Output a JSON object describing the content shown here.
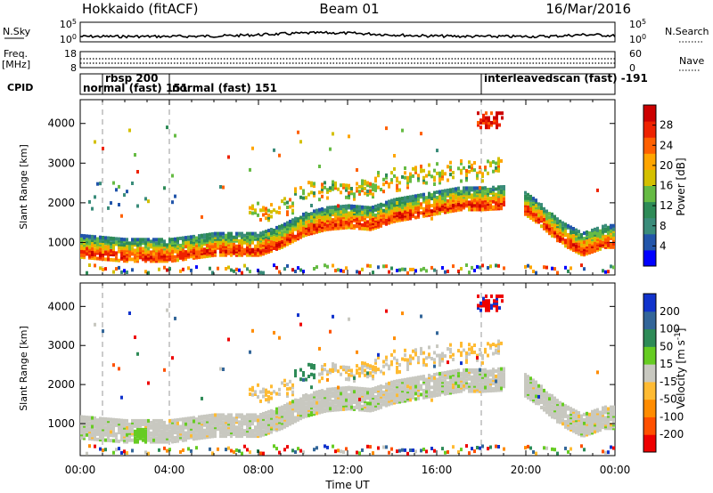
{
  "header": {
    "station": "Hokkaido (fitACF)",
    "beam": "Beam 01",
    "date": "16/Mar/2016"
  },
  "noise_panel": {
    "left_label": "N.Sky",
    "left_top_tick": "10^5",
    "left_bottom_tick": "10^0",
    "right_top_tick": "10^5",
    "right_bottom_tick": "10^0",
    "right_label": "N.Search"
  },
  "freq_panel": {
    "left_label_line1": "Freq.",
    "left_label_line2": "[MHz]",
    "left_top_tick": "18",
    "left_bottom_tick": "8",
    "right_top_tick": "60",
    "right_bottom_tick": "0",
    "right_label": "Nave"
  },
  "cpid_panel": {
    "label": "CPID",
    "modes": [
      {
        "text": "rbsp 200",
        "hour": 1.0
      },
      {
        "text": "normal (fast) 151",
        "hour": 0.0
      },
      {
        "text": "normal (fast) 151",
        "hour": 4.0
      },
      {
        "text": "interleavedscan (fast) -191",
        "hour": 18.0
      }
    ],
    "mode_boundaries_hours": [
      1.0,
      4.0,
      18.0
    ]
  },
  "colors": {
    "power": [
      "#0000ff",
      "#2255aa",
      "#3a8c7a",
      "#2e8b57",
      "#66bb44",
      "#d4c000",
      "#ffa500",
      "#ff6000",
      "#ee2200",
      "#cc0000"
    ],
    "velocity": [
      "#ee0000",
      "#ff5000",
      "#ff8c00",
      "#ffbb33",
      "#c8c8c0",
      "#66cc22",
      "#2e8b57",
      "#336699",
      "#1133cc"
    ]
  },
  "chart_data": [
    {
      "type": "heatmap",
      "name": "Power",
      "ylabel": "Slant Range [km]",
      "xlabel": "Time UT",
      "xlim": [
        0,
        24
      ],
      "ylim": [
        180,
        4600
      ],
      "x_ticks": [
        "00:00",
        "04:00",
        "08:00",
        "12:00",
        "16:00",
        "20:00",
        "00:00"
      ],
      "y_ticks": [
        1000,
        2000,
        3000,
        4000
      ],
      "colorbar": {
        "label": "Power [dB]",
        "range": [
          0,
          32
        ],
        "ticks": [
          4,
          8,
          12,
          16,
          20,
          24,
          28
        ]
      },
      "main_echo_band_km": {
        "hours": [
          0,
          2,
          4,
          6,
          8,
          9,
          10,
          11,
          12,
          13,
          14,
          15,
          16,
          17,
          18,
          19.5,
          20.5,
          21.5,
          22.5,
          23.5
        ],
        "range": [
          950,
          850,
          850,
          1000,
          1000,
          1200,
          1500,
          1650,
          1700,
          1650,
          1850,
          1950,
          2050,
          2150,
          2150,
          2200,
          1800,
          1300,
          1000,
          1200
        ]
      }
    },
    {
      "type": "heatmap",
      "name": "Velocity",
      "ylabel": "Slant Range [km]",
      "xlabel": "Time UT",
      "xlim": [
        0,
        24
      ],
      "ylim": [
        180,
        4600
      ],
      "x_ticks": [
        "00:00",
        "04:00",
        "08:00",
        "12:00",
        "16:00",
        "20:00",
        "00:00"
      ],
      "y_ticks": [
        1000,
        2000,
        3000,
        4000
      ],
      "colorbar": {
        "label": "Velocity [m s^-1]",
        "ticks": [
          "200",
          "100",
          "50",
          "15",
          "-15",
          "-50",
          "-100",
          "-200"
        ]
      }
    }
  ],
  "axis": {
    "xlabel": "Time UT"
  }
}
